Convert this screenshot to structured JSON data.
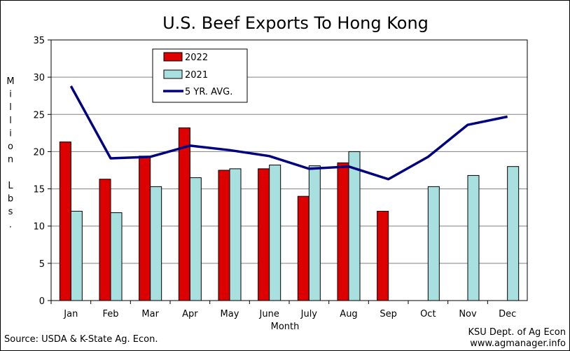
{
  "chart_data": {
    "type": "bar",
    "title": "U.S. Beef Exports To Hong Kong",
    "ylabel": "Million Lbs.",
    "xlabel": "Month",
    "ylim": [
      0,
      35
    ],
    "yticks": [
      0,
      5,
      10,
      15,
      20,
      25,
      30,
      35
    ],
    "grid": true,
    "legend_position": "top-left",
    "categories": [
      "Jan",
      "Feb",
      "Mar",
      "Apr",
      "May",
      "June",
      "July",
      "Aug",
      "Sep",
      "Oct",
      "Nov",
      "Dec"
    ],
    "series": [
      {
        "name": "2022",
        "type": "bar",
        "color": "#dd0000",
        "values": [
          21.3,
          16.3,
          19.4,
          23.2,
          17.5,
          17.7,
          14.0,
          18.5,
          12.0,
          null,
          null,
          null
        ]
      },
      {
        "name": "2021",
        "type": "bar",
        "color": "#a8e0e0",
        "values": [
          12.0,
          11.8,
          15.3,
          16.5,
          17.7,
          18.2,
          18.1,
          20.0,
          null,
          15.3,
          16.8,
          18.0
        ]
      },
      {
        "name": "5 YR. AVG.",
        "type": "line",
        "color": "#000080",
        "values": [
          28.8,
          19.1,
          19.3,
          20.8,
          20.2,
          19.4,
          17.7,
          18.0,
          16.3,
          19.3,
          23.6,
          24.7
        ]
      }
    ]
  },
  "footer": {
    "source": "Source:  USDA & K-State Ag. Econ.",
    "credit_line1": "KSU Dept. of Ag Econ",
    "credit_line2": "www.agmanager.info"
  }
}
